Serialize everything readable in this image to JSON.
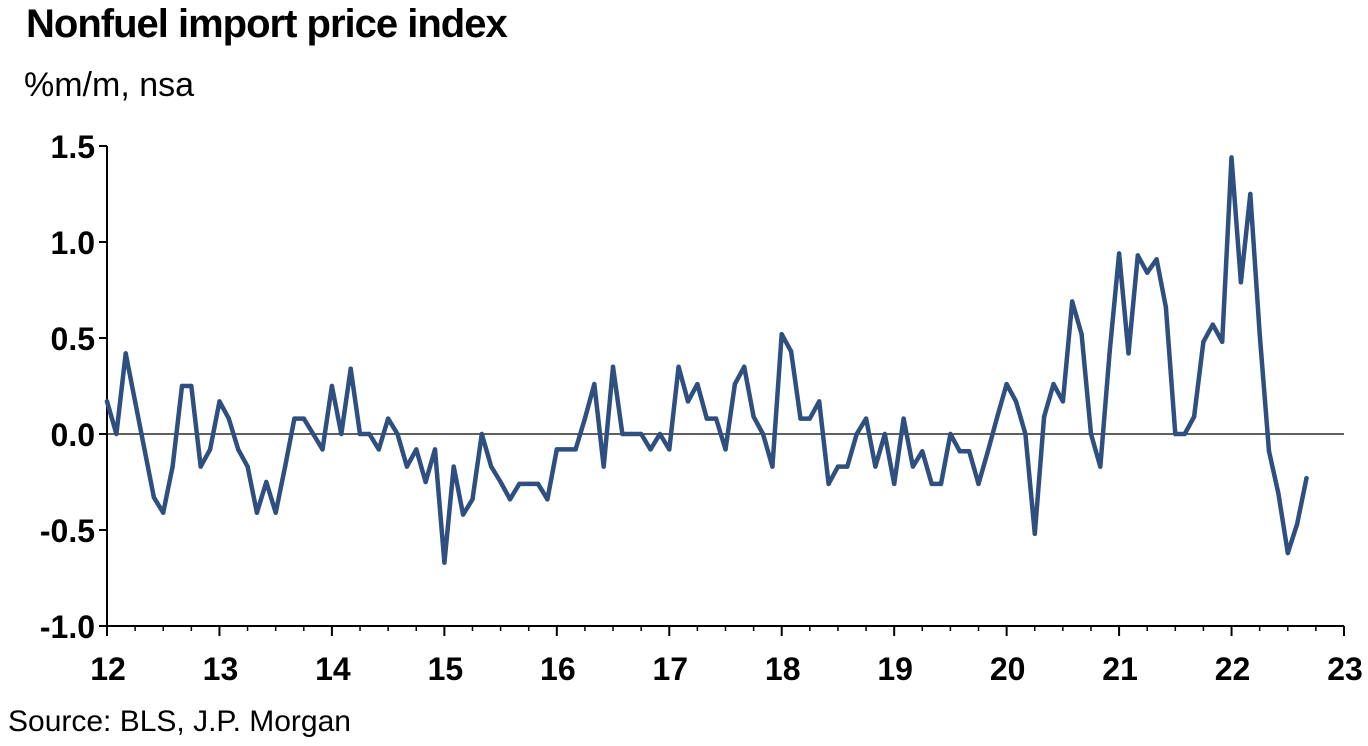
{
  "title": "Nonfuel import price index",
  "subtitle": "%m/m, nsa",
  "source": "Source: BLS, J.P. Morgan",
  "colors": {
    "line": "#2e4f7f",
    "axis": "#000000"
  },
  "chart_data": {
    "type": "line",
    "title": "Nonfuel import price index",
    "ylabel": "%m/m, nsa",
    "xlabel": "",
    "ylim": [
      -1.0,
      1.5
    ],
    "xlim": [
      12,
      23
    ],
    "yticks": [
      1.5,
      1.0,
      0.5,
      0.0,
      -0.5,
      -1.0
    ],
    "ytick_labels": [
      "1.5",
      "1.0",
      "0.5",
      "0.0",
      "-0.5",
      "-1.0"
    ],
    "xticks": [
      12,
      13,
      14,
      15,
      16,
      17,
      18,
      19,
      20,
      21,
      22,
      23
    ],
    "xtick_labels": [
      "12",
      "13",
      "14",
      "15",
      "16",
      "17",
      "18",
      "19",
      "20",
      "21",
      "22",
      "23"
    ],
    "grid": false,
    "zero_line": true,
    "x_start": "2012-01",
    "series": [
      {
        "values": [
          0.17,
          0.0,
          0.42,
          0.17,
          -0.08,
          -0.33,
          -0.41,
          -0.17,
          0.25,
          0.25,
          -0.17,
          -0.08,
          0.17,
          0.08,
          -0.08,
          -0.17,
          -0.41,
          -0.25,
          -0.41,
          -0.17,
          0.08,
          0.08,
          0.0,
          -0.08,
          0.25,
          0.0,
          0.34,
          0.0,
          0.0,
          -0.08,
          0.08,
          0.0,
          -0.17,
          -0.08,
          -0.25,
          -0.08,
          -0.67,
          -0.17,
          -0.42,
          -0.34,
          0.0,
          -0.17,
          -0.25,
          -0.34,
          -0.26,
          -0.26,
          -0.26,
          -0.34,
          -0.08,
          -0.08,
          -0.08,
          0.08,
          0.26,
          -0.17,
          0.35,
          0.0,
          0.0,
          0.0,
          -0.08,
          0.0,
          -0.08,
          0.35,
          0.17,
          0.26,
          0.08,
          0.08,
          -0.08,
          0.26,
          0.35,
          0.09,
          0.0,
          -0.17,
          0.52,
          0.43,
          0.08,
          0.08,
          0.17,
          -0.26,
          -0.17,
          -0.17,
          0.0,
          0.08,
          -0.17,
          0.0,
          -0.26,
          0.08,
          -0.17,
          -0.09,
          -0.26,
          -0.26,
          0.0,
          -0.09,
          -0.09,
          -0.26,
          -0.09,
          0.09,
          0.26,
          0.17,
          0.0,
          -0.52,
          0.09,
          0.26,
          0.17,
          0.69,
          0.52,
          0.0,
          -0.17,
          0.43,
          0.94,
          0.42,
          0.93,
          0.84,
          0.91,
          0.66,
          0.0,
          0.0,
          0.09,
          0.48,
          0.57,
          0.48,
          1.44,
          0.79,
          1.25,
          0.52,
          -0.09,
          -0.31,
          -0.62,
          -0.47,
          -0.23
        ]
      }
    ]
  }
}
